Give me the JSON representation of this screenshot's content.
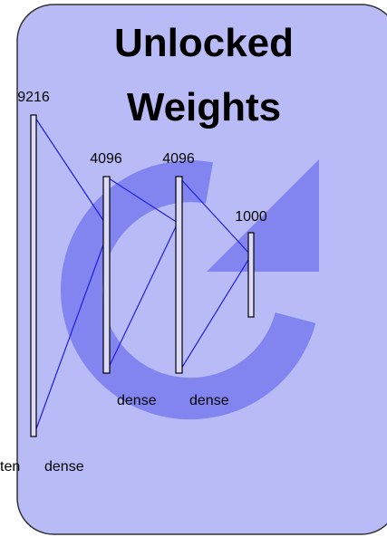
{
  "title": [
    "Unlocked",
    "Weights"
  ],
  "layers": [
    {
      "size": "9216",
      "label": "ten"
    },
    {
      "size": "4096",
      "label": "dense"
    },
    {
      "size": "4096",
      "label": "dense"
    },
    {
      "size": "1000",
      "label": "dense"
    }
  ],
  "extra_label": "dense"
}
